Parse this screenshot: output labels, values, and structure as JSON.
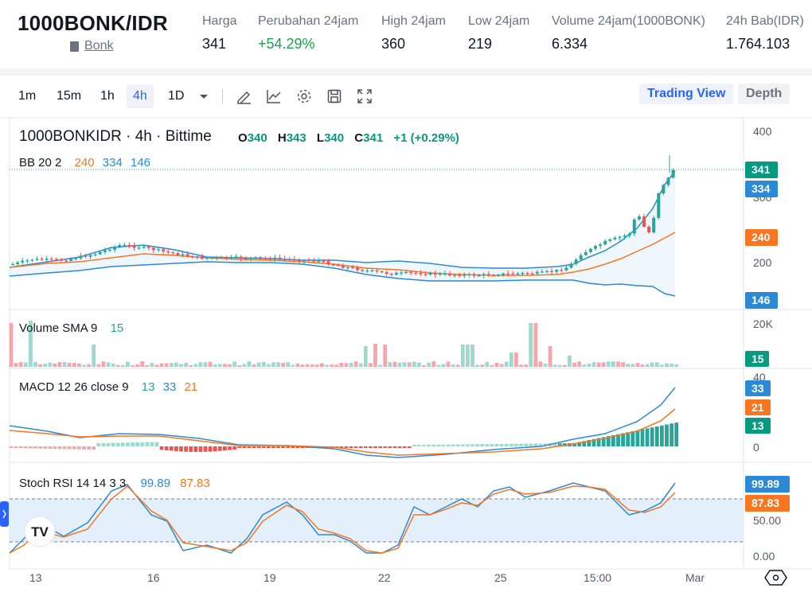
{
  "header": {
    "pair": "1000BONK/IDR",
    "coin_link": "Bonk",
    "stats": [
      {
        "label": "Harga",
        "value": "341"
      },
      {
        "label": "Perubahan 24jam",
        "value": "+54.29%"
      },
      {
        "label": "High 24jam",
        "value": "360"
      },
      {
        "label": "Low 24jam",
        "value": "219"
      },
      {
        "label": "Volume 24jam(1000BONK)",
        "value": "6.334"
      },
      {
        "label": "24h Bab(IDR)",
        "value": "1.764.103"
      }
    ]
  },
  "toolbar": {
    "timeframes": [
      "1m",
      "15m",
      "1h",
      "4h",
      "1D"
    ],
    "active_timeframe": "4h",
    "icons": [
      "dropdown-icon",
      "draw-icon",
      "indicator-icon",
      "settings-icon",
      "save-icon",
      "fullscreen-icon"
    ],
    "view_tradingview": "Trading View",
    "view_depth": "Depth"
  },
  "chart": {
    "symbol_line": "1000BONKIDR · 4h · Bittime",
    "ohlc": {
      "o_label": "O",
      "o": "340",
      "h_label": "H",
      "h": "343",
      "l_label": "L",
      "l": "340",
      "c_label": "C",
      "c": "341",
      "change": "+1 (+0.29%)"
    },
    "bb_label": "BB 20 2",
    "bb_values": [
      "240",
      "334",
      "146"
    ],
    "price_axis": [
      "400",
      "350",
      "300",
      "250",
      "200"
    ],
    "price_tags": [
      "341",
      "334",
      "240",
      "146"
    ],
    "volume_label": "Volume SMA 9",
    "volume_value": "15",
    "volume_axis": "20K",
    "volume_tag": "15",
    "macd_label": "MACD 12 26 close 9",
    "macd_values": [
      "13",
      "33",
      "21"
    ],
    "macd_axis": [
      "40",
      "0"
    ],
    "macd_tags": [
      "33",
      "21",
      "13"
    ],
    "stoch_label": "Stoch RSI 14 14 3 3",
    "stoch_values": [
      "99.89",
      "87.83"
    ],
    "stoch_axis": [
      "50.00",
      "0.00"
    ],
    "stoch_tags": [
      "99.89",
      "87.83"
    ],
    "time_axis": [
      "13",
      "16",
      "19",
      "22",
      "25",
      "15:00",
      "Mar"
    ],
    "logo": "TV"
  },
  "colors": {
    "up": "#26a69a",
    "down": "#ef5350",
    "bb_basis": "#f7761f",
    "bb_band": "#2b89d6",
    "accent": "#2962ff",
    "macd_line": "#2b89d6",
    "signal_line": "#f7761f"
  }
}
